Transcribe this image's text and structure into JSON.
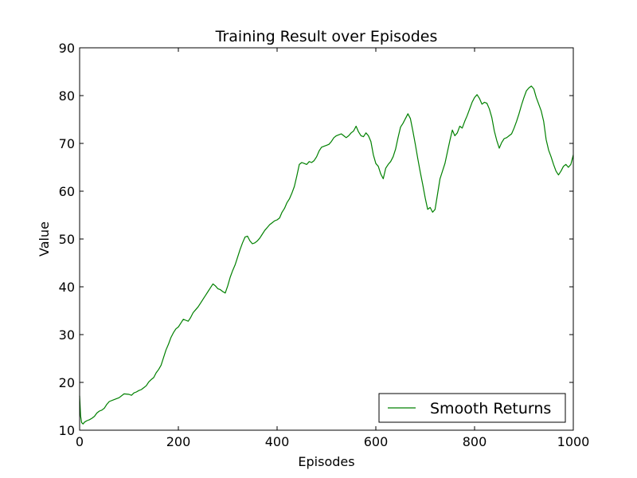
{
  "chart_data": {
    "type": "line",
    "title": "Training Result over Episodes",
    "xlabel": "Episodes",
    "ylabel": "Value",
    "xlim": [
      0,
      1000
    ],
    "ylim": [
      10,
      90
    ],
    "x_ticks": [
      "0",
      "200",
      "400",
      "600",
      "800",
      "1000"
    ],
    "y_ticks": [
      "10",
      "20",
      "30",
      "40",
      "50",
      "60",
      "70",
      "80",
      "90"
    ],
    "grid": false,
    "legend_position": "lower-right",
    "colors": {
      "series": "#008000",
      "axes": "#000000",
      "background": "#ffffff"
    },
    "series": [
      {
        "name": "Smooth Returns",
        "points": [
          [
            0,
            17.2
          ],
          [
            2,
            13.0
          ],
          [
            4,
            11.6
          ],
          [
            7,
            11.3
          ],
          [
            10,
            11.7
          ],
          [
            15,
            12.0
          ],
          [
            20,
            12.2
          ],
          [
            25,
            12.5
          ],
          [
            30,
            12.9
          ],
          [
            35,
            13.6
          ],
          [
            40,
            14.0
          ],
          [
            45,
            14.2
          ],
          [
            50,
            14.6
          ],
          [
            55,
            15.4
          ],
          [
            60,
            16.0
          ],
          [
            70,
            16.4
          ],
          [
            80,
            16.8
          ],
          [
            90,
            17.6
          ],
          [
            100,
            17.5
          ],
          [
            105,
            17.3
          ],
          [
            110,
            17.8
          ],
          [
            115,
            18.0
          ],
          [
            120,
            18.3
          ],
          [
            125,
            18.5
          ],
          [
            130,
            18.9
          ],
          [
            135,
            19.3
          ],
          [
            140,
            20.1
          ],
          [
            145,
            20.6
          ],
          [
            150,
            21.0
          ],
          [
            155,
            22.0
          ],
          [
            160,
            22.7
          ],
          [
            165,
            23.6
          ],
          [
            170,
            25.2
          ],
          [
            175,
            26.8
          ],
          [
            180,
            28.0
          ],
          [
            185,
            29.4
          ],
          [
            190,
            30.4
          ],
          [
            195,
            31.2
          ],
          [
            200,
            31.6
          ],
          [
            205,
            32.4
          ],
          [
            210,
            33.2
          ],
          [
            215,
            33.0
          ],
          [
            220,
            32.8
          ],
          [
            225,
            33.6
          ],
          [
            230,
            34.6
          ],
          [
            235,
            35.2
          ],
          [
            240,
            35.8
          ],
          [
            245,
            36.6
          ],
          [
            250,
            37.4
          ],
          [
            255,
            38.2
          ],
          [
            260,
            39.0
          ],
          [
            265,
            39.8
          ],
          [
            270,
            40.6
          ],
          [
            275,
            40.2
          ],
          [
            280,
            39.6
          ],
          [
            285,
            39.4
          ],
          [
            290,
            39.0
          ],
          [
            295,
            38.7
          ],
          [
            300,
            40.2
          ],
          [
            305,
            42.0
          ],
          [
            310,
            43.4
          ],
          [
            315,
            44.6
          ],
          [
            320,
            46.2
          ],
          [
            325,
            47.8
          ],
          [
            330,
            49.2
          ],
          [
            335,
            50.4
          ],
          [
            340,
            50.6
          ],
          [
            345,
            49.6
          ],
          [
            350,
            49.0
          ],
          [
            355,
            49.2
          ],
          [
            360,
            49.6
          ],
          [
            365,
            50.2
          ],
          [
            370,
            51.0
          ],
          [
            375,
            51.8
          ],
          [
            380,
            52.4
          ],
          [
            385,
            53.0
          ],
          [
            390,
            53.4
          ],
          [
            395,
            53.8
          ],
          [
            400,
            54.0
          ],
          [
            405,
            54.4
          ],
          [
            410,
            55.6
          ],
          [
            415,
            56.4
          ],
          [
            420,
            57.6
          ],
          [
            425,
            58.4
          ],
          [
            430,
            59.6
          ],
          [
            435,
            61.0
          ],
          [
            440,
            63.2
          ],
          [
            445,
            65.6
          ],
          [
            450,
            66.0
          ],
          [
            455,
            65.8
          ],
          [
            460,
            65.6
          ],
          [
            465,
            66.2
          ],
          [
            470,
            66.0
          ],
          [
            475,
            66.4
          ],
          [
            480,
            67.2
          ],
          [
            485,
            68.4
          ],
          [
            490,
            69.2
          ],
          [
            495,
            69.4
          ],
          [
            500,
            69.6
          ],
          [
            505,
            69.8
          ],
          [
            510,
            70.4
          ],
          [
            515,
            71.2
          ],
          [
            520,
            71.6
          ],
          [
            525,
            71.8
          ],
          [
            530,
            72.0
          ],
          [
            535,
            71.6
          ],
          [
            540,
            71.2
          ],
          [
            545,
            71.6
          ],
          [
            550,
            72.2
          ],
          [
            555,
            72.6
          ],
          [
            560,
            73.6
          ],
          [
            565,
            72.4
          ],
          [
            570,
            71.6
          ],
          [
            575,
            71.4
          ],
          [
            580,
            72.2
          ],
          [
            585,
            71.6
          ],
          [
            590,
            70.4
          ],
          [
            595,
            67.6
          ],
          [
            600,
            65.8
          ],
          [
            605,
            65.2
          ],
          [
            610,
            63.6
          ],
          [
            615,
            62.6
          ],
          [
            620,
            64.8
          ],
          [
            625,
            65.6
          ],
          [
            630,
            66.2
          ],
          [
            635,
            67.2
          ],
          [
            640,
            68.8
          ],
          [
            645,
            71.2
          ],
          [
            650,
            73.4
          ],
          [
            655,
            74.2
          ],
          [
            660,
            75.2
          ],
          [
            665,
            76.2
          ],
          [
            670,
            75.2
          ],
          [
            675,
            72.6
          ],
          [
            680,
            69.8
          ],
          [
            685,
            66.8
          ],
          [
            690,
            64.0
          ],
          [
            695,
            61.4
          ],
          [
            700,
            58.6
          ],
          [
            705,
            56.2
          ],
          [
            710,
            56.6
          ],
          [
            715,
            55.6
          ],
          [
            720,
            56.2
          ],
          [
            725,
            59.4
          ],
          [
            730,
            62.6
          ],
          [
            735,
            64.2
          ],
          [
            740,
            65.8
          ],
          [
            745,
            68.2
          ],
          [
            750,
            70.6
          ],
          [
            755,
            72.8
          ],
          [
            760,
            71.6
          ],
          [
            765,
            72.2
          ],
          [
            770,
            73.6
          ],
          [
            775,
            73.2
          ],
          [
            780,
            74.6
          ],
          [
            785,
            75.8
          ],
          [
            790,
            77.2
          ],
          [
            795,
            78.6
          ],
          [
            800,
            79.6
          ],
          [
            805,
            80.2
          ],
          [
            810,
            79.4
          ],
          [
            815,
            78.2
          ],
          [
            820,
            78.6
          ],
          [
            825,
            78.4
          ],
          [
            830,
            77.2
          ],
          [
            835,
            75.4
          ],
          [
            840,
            72.6
          ],
          [
            845,
            70.6
          ],
          [
            850,
            69.0
          ],
          [
            855,
            70.2
          ],
          [
            860,
            71.0
          ],
          [
            865,
            71.2
          ],
          [
            870,
            71.6
          ],
          [
            875,
            72.0
          ],
          [
            880,
            73.2
          ],
          [
            885,
            74.6
          ],
          [
            890,
            76.2
          ],
          [
            895,
            78.0
          ],
          [
            900,
            79.6
          ],
          [
            905,
            81.0
          ],
          [
            910,
            81.6
          ],
          [
            915,
            82.0
          ],
          [
            920,
            81.4
          ],
          [
            925,
            79.6
          ],
          [
            930,
            78.2
          ],
          [
            935,
            76.8
          ],
          [
            940,
            74.6
          ],
          [
            945,
            70.8
          ],
          [
            950,
            68.6
          ],
          [
            955,
            67.2
          ],
          [
            960,
            65.6
          ],
          [
            965,
            64.2
          ],
          [
            970,
            63.4
          ],
          [
            975,
            64.2
          ],
          [
            980,
            65.2
          ],
          [
            985,
            65.6
          ],
          [
            990,
            65.0
          ],
          [
            995,
            65.6
          ],
          [
            998,
            66.8
          ],
          [
            1000,
            67.6
          ]
        ]
      }
    ]
  }
}
